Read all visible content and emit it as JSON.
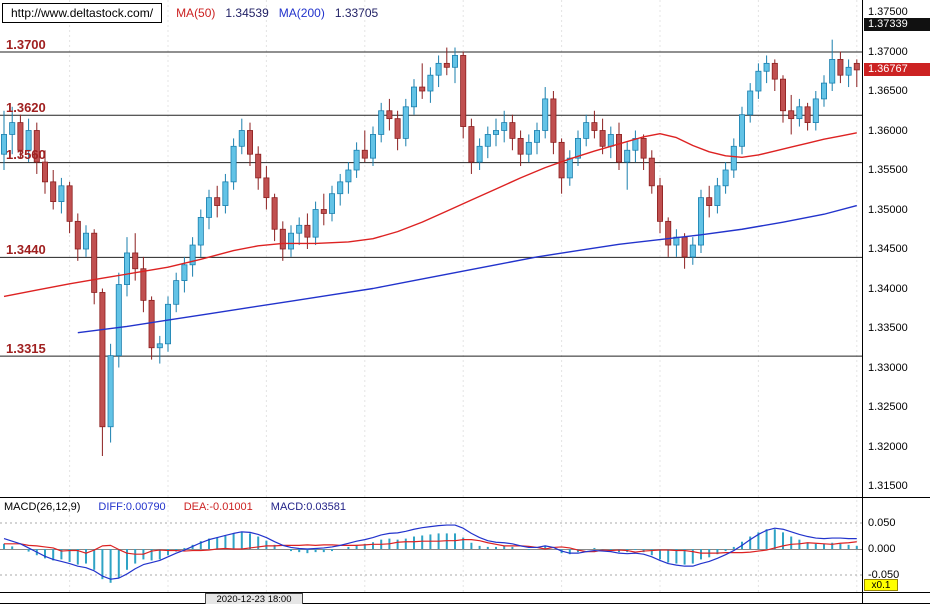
{
  "header": {
    "url": "http://www.deltastock.com/",
    "ma50_label": "MA(50)",
    "ma50_value": "1.34539",
    "ma200_label": "MA(200)",
    "ma200_value": "1.33705"
  },
  "levels": [
    {
      "label": "1.3700",
      "price": 1.37
    },
    {
      "label": "1.3620",
      "price": 1.362
    },
    {
      "label": "1.3560",
      "price": 1.356
    },
    {
      "label": "1.3440",
      "price": 1.344
    },
    {
      "label": "1.3315",
      "price": 1.3315
    }
  ],
  "price_axis": {
    "ticks": [
      "1.37500",
      "1.37000",
      "1.36500",
      "1.36000",
      "1.35500",
      "1.35000",
      "1.34500",
      "1.34000",
      "1.33500",
      "1.33000",
      "1.32500",
      "1.32000",
      "1.31500"
    ],
    "high_badge": {
      "text": "1.37339",
      "price": 1.37339
    },
    "last_badge": {
      "text": "1.36767",
      "price": 1.36767
    }
  },
  "macd_panel": {
    "title": "MACD(26,12,9)",
    "diff_label": "DIFF:0.00790",
    "dea_label": "DEA:-0.01001",
    "macd_label": "MACD:0.03581",
    "ticks": [
      "0.050",
      "0.000",
      "-0.050"
    ],
    "multiplier_badge": "x0.1"
  },
  "time_axis": {
    "label": "2020-12-23 18:00"
  },
  "colors": {
    "background": "#ffffff",
    "up_fill": "#63c3e6",
    "up_stroke": "#1a7fae",
    "down_fill": "#c05050",
    "down_stroke": "#8c1f1f",
    "ma50": "#dd2222",
    "ma200": "#2233cc",
    "macd_hist": "#2fa3c5",
    "macd_diff": "#2233cc",
    "macd_dea": "#dd2222",
    "level_line": "#222222",
    "grid": "#e4e4e4"
  },
  "chart_data": {
    "type": "candlestick",
    "title": "Price chart with MA(50), MA(200) and MACD(26,12,9) panel",
    "price_range": [
      1.315,
      1.375
    ],
    "price_tick_step": 0.005,
    "support_resistance_levels": [
      1.37,
      1.362,
      1.356,
      1.344,
      1.3315
    ],
    "last_price": 1.36767,
    "candles": [
      [
        1.357,
        1.3625,
        1.355,
        1.3595
      ],
      [
        1.3595,
        1.363,
        1.357,
        1.361
      ],
      [
        1.361,
        1.362,
        1.3565,
        1.3575
      ],
      [
        1.3575,
        1.3615,
        1.356,
        1.36
      ],
      [
        1.36,
        1.361,
        1.3545,
        1.356
      ],
      [
        1.356,
        1.3575,
        1.352,
        1.3535
      ],
      [
        1.3535,
        1.355,
        1.35,
        1.351
      ],
      [
        1.351,
        1.354,
        1.3495,
        1.353
      ],
      [
        1.353,
        1.3535,
        1.347,
        1.3485
      ],
      [
        1.3485,
        1.3495,
        1.3435,
        1.345
      ],
      [
        1.345,
        1.348,
        1.344,
        1.347
      ],
      [
        1.347,
        1.3475,
        1.338,
        1.3395
      ],
      [
        1.3395,
        1.34,
        1.3188,
        1.3225
      ],
      [
        1.3225,
        1.333,
        1.3205,
        1.3315
      ],
      [
        1.3315,
        1.342,
        1.33,
        1.3405
      ],
      [
        1.3405,
        1.3465,
        1.339,
        1.3445
      ],
      [
        1.3445,
        1.347,
        1.341,
        1.3425
      ],
      [
        1.3425,
        1.344,
        1.337,
        1.3385
      ],
      [
        1.3385,
        1.339,
        1.331,
        1.3325
      ],
      [
        1.3325,
        1.334,
        1.3305,
        1.333
      ],
      [
        1.333,
        1.339,
        1.332,
        1.338
      ],
      [
        1.338,
        1.342,
        1.337,
        1.341
      ],
      [
        1.341,
        1.344,
        1.3395,
        1.343
      ],
      [
        1.343,
        1.3465,
        1.3415,
        1.3455
      ],
      [
        1.3455,
        1.35,
        1.344,
        1.349
      ],
      [
        1.349,
        1.3525,
        1.3475,
        1.3515
      ],
      [
        1.3515,
        1.353,
        1.349,
        1.3505
      ],
      [
        1.3505,
        1.3545,
        1.3495,
        1.3535
      ],
      [
        1.3535,
        1.359,
        1.3525,
        1.358
      ],
      [
        1.358,
        1.3615,
        1.357,
        1.36
      ],
      [
        1.36,
        1.361,
        1.3555,
        1.357
      ],
      [
        1.357,
        1.358,
        1.3525,
        1.354
      ],
      [
        1.354,
        1.3555,
        1.35,
        1.3515
      ],
      [
        1.3515,
        1.352,
        1.346,
        1.3475
      ],
      [
        1.3475,
        1.3485,
        1.3435,
        1.345
      ],
      [
        1.345,
        1.348,
        1.344,
        1.347
      ],
      [
        1.347,
        1.349,
        1.3455,
        1.348
      ],
      [
        1.348,
        1.3495,
        1.345,
        1.3465
      ],
      [
        1.3465,
        1.351,
        1.3455,
        1.35
      ],
      [
        1.35,
        1.352,
        1.348,
        1.3495
      ],
      [
        1.3495,
        1.353,
        1.3485,
        1.352
      ],
      [
        1.352,
        1.3545,
        1.3505,
        1.3535
      ],
      [
        1.3535,
        1.356,
        1.352,
        1.355
      ],
      [
        1.355,
        1.3585,
        1.354,
        1.3575
      ],
      [
        1.3575,
        1.36,
        1.356,
        1.3565
      ],
      [
        1.3565,
        1.3605,
        1.3555,
        1.3595
      ],
      [
        1.3595,
        1.3635,
        1.3585,
        1.3625
      ],
      [
        1.3625,
        1.364,
        1.36,
        1.3615
      ],
      [
        1.3615,
        1.3625,
        1.3575,
        1.359
      ],
      [
        1.359,
        1.364,
        1.358,
        1.363
      ],
      [
        1.363,
        1.3665,
        1.362,
        1.3655
      ],
      [
        1.3655,
        1.3685,
        1.364,
        1.365
      ],
      [
        1.365,
        1.368,
        1.3635,
        1.367
      ],
      [
        1.367,
        1.3695,
        1.3655,
        1.3685
      ],
      [
        1.3685,
        1.3705,
        1.367,
        1.368
      ],
      [
        1.368,
        1.3705,
        1.366,
        1.3695
      ],
      [
        1.3695,
        1.37,
        1.359,
        1.3605
      ],
      [
        1.3605,
        1.3615,
        1.3545,
        1.356
      ],
      [
        1.356,
        1.359,
        1.355,
        1.358
      ],
      [
        1.358,
        1.3605,
        1.3565,
        1.3595
      ],
      [
        1.3595,
        1.3615,
        1.358,
        1.36
      ],
      [
        1.36,
        1.3625,
        1.3585,
        1.361
      ],
      [
        1.361,
        1.362,
        1.3575,
        1.359
      ],
      [
        1.359,
        1.36,
        1.3555,
        1.357
      ],
      [
        1.357,
        1.3595,
        1.356,
        1.3585
      ],
      [
        1.3585,
        1.361,
        1.357,
        1.36
      ],
      [
        1.36,
        1.3655,
        1.359,
        1.364
      ],
      [
        1.364,
        1.365,
        1.357,
        1.3585
      ],
      [
        1.3585,
        1.359,
        1.352,
        1.354
      ],
      [
        1.354,
        1.3575,
        1.353,
        1.3565
      ],
      [
        1.3565,
        1.36,
        1.3555,
        1.359
      ],
      [
        1.359,
        1.362,
        1.358,
        1.361
      ],
      [
        1.361,
        1.3625,
        1.359,
        1.36
      ],
      [
        1.36,
        1.3615,
        1.357,
        1.358
      ],
      [
        1.358,
        1.3605,
        1.3565,
        1.3595
      ],
      [
        1.3595,
        1.361,
        1.355,
        1.356
      ],
      [
        1.356,
        1.3585,
        1.3525,
        1.3575
      ],
      [
        1.3575,
        1.36,
        1.356,
        1.359
      ],
      [
        1.359,
        1.3595,
        1.355,
        1.3565
      ],
      [
        1.3565,
        1.3575,
        1.352,
        1.353
      ],
      [
        1.353,
        1.354,
        1.347,
        1.3485
      ],
      [
        1.3485,
        1.349,
        1.344,
        1.3455
      ],
      [
        1.3455,
        1.3475,
        1.344,
        1.3465
      ],
      [
        1.3465,
        1.347,
        1.3425,
        1.344
      ],
      [
        1.344,
        1.3465,
        1.343,
        1.3455
      ],
      [
        1.3455,
        1.3525,
        1.3445,
        1.3515
      ],
      [
        1.3515,
        1.353,
        1.349,
        1.3505
      ],
      [
        1.3505,
        1.354,
        1.3495,
        1.353
      ],
      [
        1.353,
        1.356,
        1.352,
        1.355
      ],
      [
        1.355,
        1.359,
        1.354,
        1.358
      ],
      [
        1.358,
        1.363,
        1.357,
        1.362
      ],
      [
        1.362,
        1.366,
        1.361,
        1.365
      ],
      [
        1.365,
        1.3685,
        1.364,
        1.3675
      ],
      [
        1.3675,
        1.3695,
        1.366,
        1.3685
      ],
      [
        1.3685,
        1.369,
        1.365,
        1.3665
      ],
      [
        1.3665,
        1.367,
        1.361,
        1.3625
      ],
      [
        1.3625,
        1.3645,
        1.3595,
        1.3615
      ],
      [
        1.3615,
        1.364,
        1.3605,
        1.363
      ],
      [
        1.363,
        1.3635,
        1.36,
        1.361
      ],
      [
        1.361,
        1.365,
        1.36,
        1.364
      ],
      [
        1.364,
        1.367,
        1.363,
        1.366
      ],
      [
        1.366,
        1.3715,
        1.365,
        1.369
      ],
      [
        1.369,
        1.37,
        1.366,
        1.367
      ],
      [
        1.367,
        1.369,
        1.3655,
        1.368
      ],
      [
        1.3685,
        1.369,
        1.3655,
        1.36767
      ]
    ],
    "ma50": [
      [
        0,
        1.339
      ],
      [
        4,
        1.3398
      ],
      [
        8,
        1.3406
      ],
      [
        12,
        1.3413
      ],
      [
        16,
        1.342
      ],
      [
        20,
        1.3427
      ],
      [
        24,
        1.3437
      ],
      [
        28,
        1.3448
      ],
      [
        31,
        1.3454
      ],
      [
        34,
        1.3457
      ],
      [
        38,
        1.3457
      ],
      [
        42,
        1.3459
      ],
      [
        45,
        1.3463
      ],
      [
        48,
        1.3472
      ],
      [
        51,
        1.3484
      ],
      [
        54,
        1.3498
      ],
      [
        57,
        1.3512
      ],
      [
        60,
        1.3526
      ],
      [
        63,
        1.354
      ],
      [
        66,
        1.3553
      ],
      [
        69,
        1.3564
      ],
      [
        72,
        1.3574
      ],
      [
        75,
        1.3583
      ],
      [
        78,
        1.3592
      ],
      [
        80,
        1.3596
      ],
      [
        82,
        1.3591
      ],
      [
        84,
        1.3581
      ],
      [
        86,
        1.3573
      ],
      [
        88,
        1.3568
      ],
      [
        90,
        1.3566
      ],
      [
        92,
        1.3569
      ],
      [
        94,
        1.3574
      ],
      [
        96,
        1.3579
      ],
      [
        98,
        1.3584
      ],
      [
        100,
        1.3589
      ],
      [
        102,
        1.3593
      ],
      [
        104,
        1.3597
      ]
    ],
    "ma200": [
      [
        9,
        1.3344
      ],
      [
        15,
        1.3352
      ],
      [
        20,
        1.336
      ],
      [
        25,
        1.3368
      ],
      [
        30,
        1.3376
      ],
      [
        35,
        1.3384
      ],
      [
        40,
        1.3392
      ],
      [
        45,
        1.34
      ],
      [
        50,
        1.341
      ],
      [
        55,
        1.342
      ],
      [
        60,
        1.343
      ],
      [
        65,
        1.344
      ],
      [
        70,
        1.3448
      ],
      [
        75,
        1.3456
      ],
      [
        80,
        1.3462
      ],
      [
        85,
        1.3468
      ],
      [
        90,
        1.3475
      ],
      [
        95,
        1.3484
      ],
      [
        100,
        1.3494
      ],
      [
        104,
        1.3505
      ]
    ],
    "macd": {
      "axis_ticks": [
        0.05,
        0.0,
        -0.05
      ],
      "multiplier": "x0.1",
      "hist": [
        0.01,
        0.005,
        0.0,
        -0.005,
        -0.012,
        -0.018,
        -0.022,
        -0.02,
        -0.025,
        -0.03,
        -0.028,
        -0.04,
        -0.058,
        -0.065,
        -0.055,
        -0.04,
        -0.028,
        -0.02,
        -0.022,
        -0.02,
        -0.012,
        -0.005,
        0.002,
        0.008,
        0.015,
        0.02,
        0.022,
        0.025,
        0.03,
        0.033,
        0.03,
        0.024,
        0.016,
        0.008,
        0.0,
        -0.004,
        -0.006,
        -0.008,
        -0.006,
        -0.006,
        -0.004,
        0.0,
        0.004,
        0.008,
        0.01,
        0.013,
        0.018,
        0.02,
        0.018,
        0.02,
        0.024,
        0.026,
        0.028,
        0.03,
        0.03,
        0.03,
        0.022,
        0.012,
        0.006,
        0.004,
        0.004,
        0.006,
        0.004,
        0.0,
        -0.002,
        0.0,
        0.006,
        0.0,
        -0.008,
        -0.01,
        -0.006,
        0.0,
        0.002,
        -0.002,
        -0.002,
        -0.006,
        -0.006,
        -0.002,
        -0.006,
        -0.012,
        -0.02,
        -0.026,
        -0.028,
        -0.03,
        -0.028,
        -0.02,
        -0.016,
        -0.01,
        -0.004,
        0.004,
        0.014,
        0.024,
        0.032,
        0.038,
        0.038,
        0.032,
        0.024,
        0.018,
        0.012,
        0.01,
        0.01,
        0.012,
        0.01,
        0.008,
        0.006
      ],
      "diff": [
        0.02,
        0.015,
        0.01,
        0.002,
        -0.006,
        -0.014,
        -0.02,
        -0.024,
        -0.028,
        -0.033,
        -0.036,
        -0.042,
        -0.052,
        -0.058,
        -0.056,
        -0.048,
        -0.038,
        -0.03,
        -0.026,
        -0.022,
        -0.015,
        -0.008,
        -0.002,
        0.005,
        0.012,
        0.018,
        0.022,
        0.026,
        0.03,
        0.033,
        0.032,
        0.028,
        0.022,
        0.014,
        0.007,
        0.003,
        0.001,
        0.0,
        0.001,
        0.002,
        0.004,
        0.007,
        0.011,
        0.015,
        0.018,
        0.022,
        0.027,
        0.03,
        0.031,
        0.034,
        0.038,
        0.041,
        0.043,
        0.045,
        0.046,
        0.046,
        0.04,
        0.03,
        0.022,
        0.016,
        0.013,
        0.012,
        0.01,
        0.006,
        0.003,
        0.003,
        0.006,
        0.003,
        -0.004,
        -0.008,
        -0.008,
        -0.005,
        -0.003,
        -0.004,
        -0.005,
        -0.008,
        -0.009,
        -0.008,
        -0.01,
        -0.015,
        -0.022,
        -0.028,
        -0.031,
        -0.033,
        -0.033,
        -0.028,
        -0.024,
        -0.018,
        -0.011,
        -0.003,
        0.007,
        0.018,
        0.028,
        0.036,
        0.04,
        0.038,
        0.033,
        0.028,
        0.024,
        0.021,
        0.02,
        0.021,
        0.021,
        0.02,
        0.02
      ]
    }
  }
}
